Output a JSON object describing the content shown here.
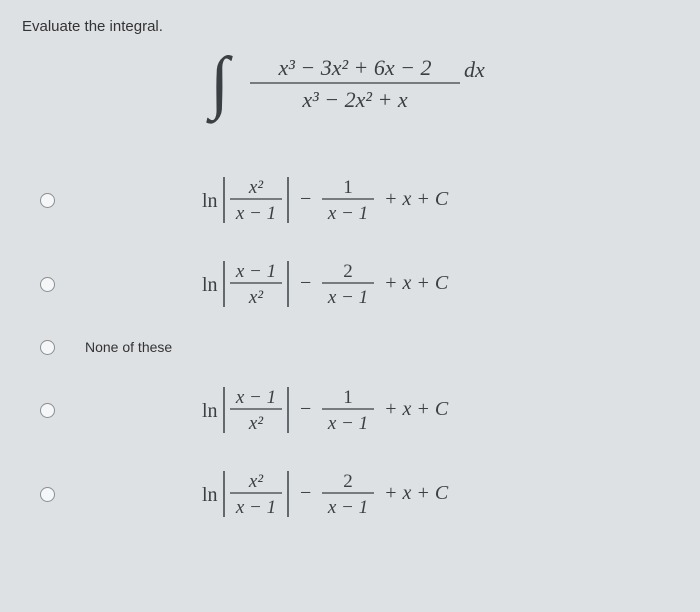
{
  "prompt": "Evaluate the integral.",
  "integral": {
    "numerator": "x³ − 3x² + 6x − 2",
    "denominator": "x³ − 2x² + x",
    "suffix": "dx"
  },
  "options": [
    {
      "ln_top": "x²",
      "ln_bottom": "x − 1",
      "frac_top": "1",
      "frac_bottom": "x − 1",
      "tail": "+ x + C",
      "is_text": false
    },
    {
      "ln_top": "x − 1",
      "ln_bottom": "x²",
      "frac_top": "2",
      "frac_bottom": "x − 1",
      "tail": "+ x + C",
      "is_text": false
    },
    {
      "label": "None of these",
      "is_text": true
    },
    {
      "ln_top": "x − 1",
      "ln_bottom": "x²",
      "frac_top": "1",
      "frac_bottom": "x − 1",
      "tail": "+ x + C",
      "is_text": false
    },
    {
      "ln_top": "x²",
      "ln_bottom": "x − 1",
      "frac_top": "2",
      "frac_bottom": "x − 1",
      "tail": "+ x + C",
      "is_text": false
    }
  ],
  "style": {
    "text_color": "#3a3f44",
    "italic_font": "italic 20px 'Times New Roman', serif",
    "normal_font": "20px 'Times New Roman', serif",
    "stroke_color": "#3a3f44",
    "stroke_width": 1.2
  }
}
